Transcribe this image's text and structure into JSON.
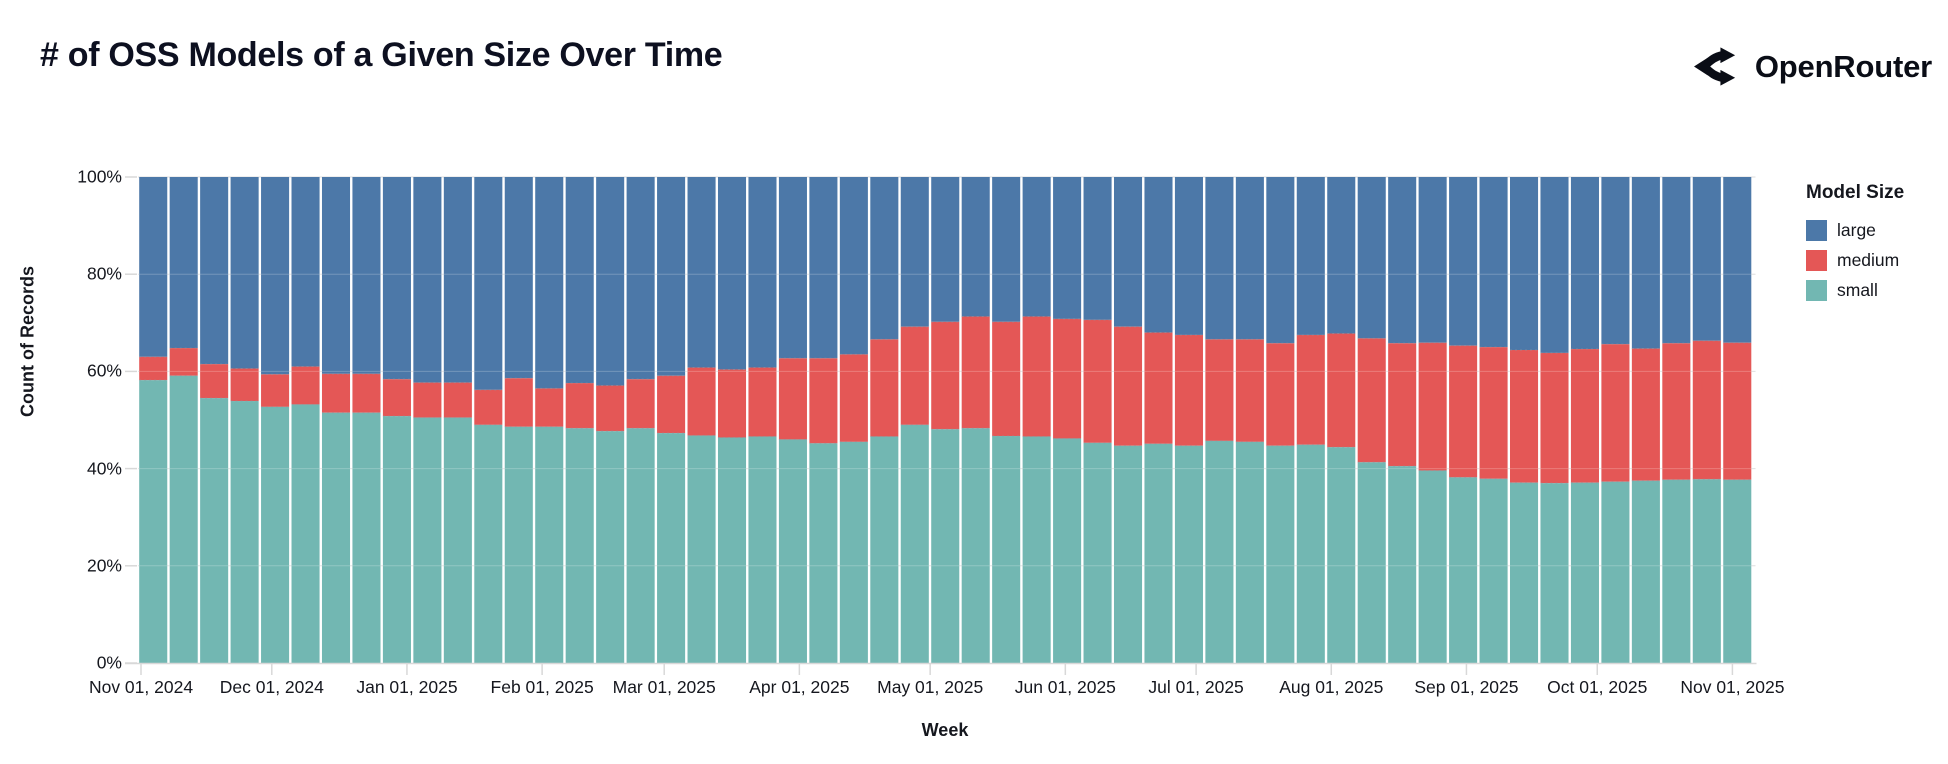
{
  "header": {
    "title": "# of OSS Models of a Given Size Over Time",
    "brand": "OpenRouter"
  },
  "chart_data": {
    "type": "bar",
    "stacked": true,
    "normalized_percent": true,
    "title": "# of OSS Models of a Given Size Over Time",
    "xlabel": "Week",
    "ylabel": "Count of Records",
    "ylim": [
      0,
      100
    ],
    "grid": true,
    "y_ticks": [
      0,
      20,
      40,
      60,
      80,
      100
    ],
    "y_tick_labels": [
      "0%",
      "20%",
      "40%",
      "60%",
      "80%",
      "100%"
    ],
    "x_tick_labels": [
      "Nov 01, 2024",
      "Dec 01, 2024",
      "Jan 01, 2025",
      "Feb 01, 2025",
      "Mar 01, 2025",
      "Apr 01, 2025",
      "May 01, 2025",
      "Jun 01, 2025",
      "Jul 01, 2025",
      "Aug 01, 2025",
      "Sep 01, 2025",
      "Oct 01, 2025",
      "Nov 01, 2025"
    ],
    "legend": {
      "title": "Model Size",
      "position": "right",
      "entries": [
        {
          "label": "large",
          "color": "#4c78a8"
        },
        {
          "label": "medium",
          "color": "#e45756"
        },
        {
          "label": "small",
          "color": "#72b7b2"
        }
      ]
    },
    "weeks": [
      "2024-10-27",
      "2024-11-03",
      "2024-11-10",
      "2024-11-17",
      "2024-11-24",
      "2024-12-01",
      "2024-12-08",
      "2024-12-15",
      "2024-12-22",
      "2024-12-29",
      "2025-01-05",
      "2025-01-12",
      "2025-01-19",
      "2025-01-26",
      "2025-02-02",
      "2025-02-09",
      "2025-02-16",
      "2025-02-23",
      "2025-03-02",
      "2025-03-09",
      "2025-03-16",
      "2025-03-23",
      "2025-03-30",
      "2025-04-06",
      "2025-04-13",
      "2025-04-20",
      "2025-04-27",
      "2025-05-04",
      "2025-05-11",
      "2025-05-18",
      "2025-05-25",
      "2025-06-01",
      "2025-06-08",
      "2025-06-15",
      "2025-06-22",
      "2025-06-29",
      "2025-07-06",
      "2025-07-13",
      "2025-07-20",
      "2025-07-27",
      "2025-08-03",
      "2025-08-10",
      "2025-08-17",
      "2025-08-24",
      "2025-08-31",
      "2025-09-07",
      "2025-09-14",
      "2025-09-21",
      "2025-09-28",
      "2025-10-05",
      "2025-10-12",
      "2025-10-19",
      "2025-10-26"
    ],
    "series": [
      {
        "name": "small",
        "color": "#72b7b2",
        "values": [
          58.2,
          59.1,
          54.5,
          53.9,
          52.7,
          53.2,
          51.5,
          51.5,
          50.8,
          50.5,
          50.5,
          49.0,
          48.6,
          48.6,
          48.3,
          47.7,
          48.3,
          47.3,
          46.8,
          46.4,
          46.6,
          46.0,
          45.2,
          45.5,
          46.6,
          49.0,
          48.1,
          48.3,
          46.7,
          46.6,
          46.2,
          45.3,
          44.7,
          45.1,
          44.7,
          45.7,
          45.5,
          44.7,
          44.9,
          44.4,
          41.3,
          40.5,
          39.6,
          38.2,
          37.9,
          37.1,
          37.0,
          37.1,
          37.3,
          37.5,
          37.7,
          37.8,
          37.7
        ]
      },
      {
        "name": "medium",
        "color": "#e45756",
        "values": [
          4.8,
          5.7,
          7.0,
          6.7,
          6.7,
          7.8,
          8.0,
          8.0,
          7.6,
          7.2,
          7.2,
          7.2,
          10.0,
          7.9,
          9.3,
          9.4,
          10.1,
          11.8,
          14.0,
          14.0,
          14.2,
          16.7,
          17.5,
          18.0,
          20.0,
          20.2,
          22.1,
          23.0,
          23.5,
          24.7,
          24.6,
          25.3,
          24.5,
          22.9,
          22.8,
          20.9,
          21.1,
          21.1,
          22.6,
          23.4,
          25.5,
          25.3,
          26.3,
          27.1,
          27.1,
          27.3,
          26.8,
          27.5,
          28.3,
          27.2,
          28.1,
          28.5,
          28.2
        ]
      },
      {
        "name": "large",
        "color": "#4c78a8",
        "values": [
          37.0,
          35.2,
          38.5,
          39.4,
          40.6,
          39.0,
          40.5,
          40.5,
          41.6,
          42.3,
          42.3,
          43.8,
          41.4,
          43.5,
          42.4,
          42.9,
          41.6,
          40.9,
          39.2,
          39.6,
          39.2,
          37.3,
          37.3,
          36.5,
          33.4,
          30.8,
          29.8,
          28.7,
          29.8,
          28.7,
          29.2,
          29.4,
          30.8,
          32.0,
          32.5,
          33.4,
          33.4,
          34.2,
          32.5,
          32.2,
          33.2,
          34.2,
          34.1,
          34.7,
          35.0,
          35.6,
          36.2,
          35.4,
          34.4,
          35.3,
          34.2,
          33.7,
          34.1
        ]
      }
    ]
  }
}
